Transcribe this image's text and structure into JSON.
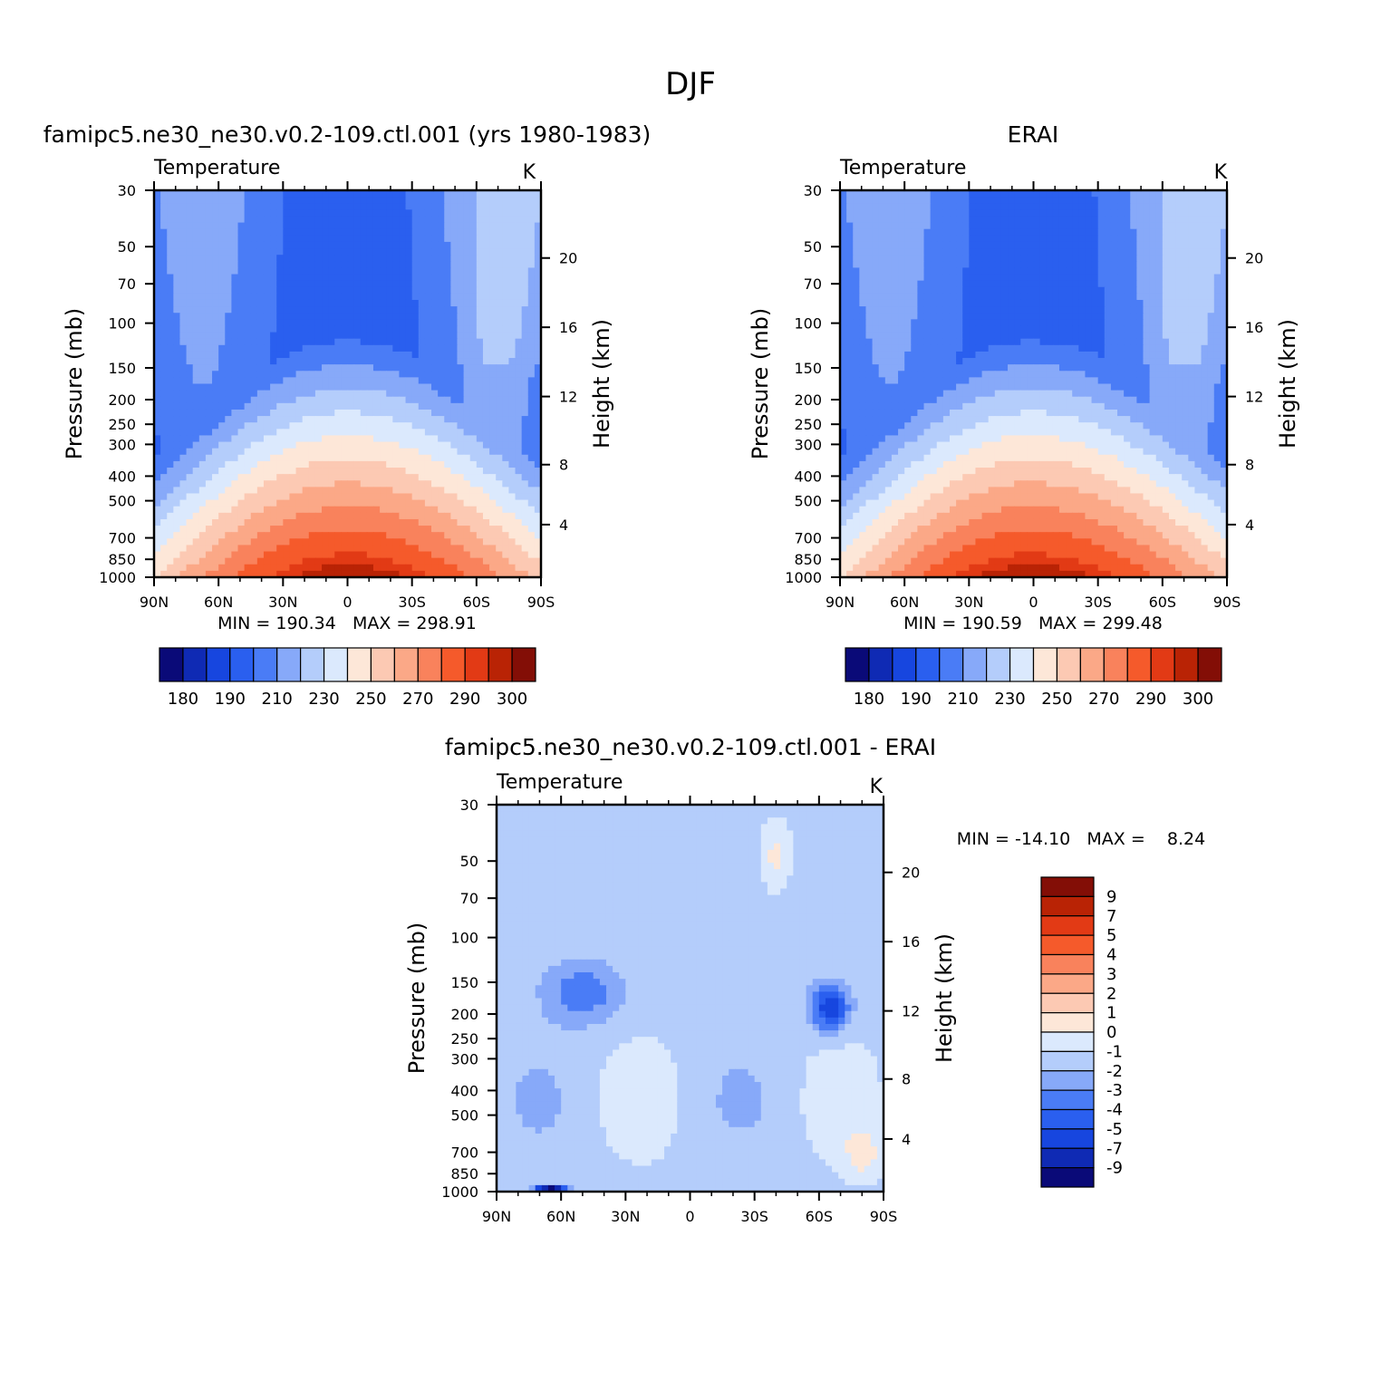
{
  "figure": {
    "title": "DJF"
  },
  "palettes": {
    "abs": [
      "#0a0a78",
      "#0f2ab4",
      "#1746df",
      "#2a5fef",
      "#4a7cf6",
      "#87a9f9",
      "#b4cdfb",
      "#dbe9fd",
      "#fde7d8",
      "#fcc9b3",
      "#fba887",
      "#f9825c",
      "#f55a2b",
      "#e23a15",
      "#b92305",
      "#830e06"
    ],
    "diff": [
      "#0a0a78",
      "#0f2ab4",
      "#1746df",
      "#2a5fef",
      "#4a7cf6",
      "#87a9f9",
      "#b4cdfb",
      "#dbe9fd",
      "#fde7d8",
      "#fcc9b3",
      "#fba887",
      "#f9825c",
      "#f55a2b",
      "#e23a15",
      "#b92305",
      "#830e06"
    ]
  },
  "chart_data": [
    {
      "type": "heatmap",
      "title": "famipc5.ne30_ne30.v0.2-109.ctl.001 (yrs 1980-1983)",
      "variable_label": "Temperature",
      "units": "K",
      "ylabel": "Pressure (mb)",
      "ylabel_right": "Height (km)",
      "x_ticks": [
        "90N",
        "60N",
        "30N",
        "0",
        "30S",
        "60S",
        "90S"
      ],
      "y_ticks": [
        "30",
        "50",
        "70",
        "100",
        "150",
        "200",
        "250",
        "300",
        "400",
        "500",
        "700",
        "850",
        "1000"
      ],
      "height_ticks": [
        "20",
        "16",
        "12",
        "8",
        "4"
      ],
      "stats_label": "MIN = 190.34   MAX = 298.91",
      "min": 190.34,
      "max": 298.91,
      "colorbar_labels": [
        "180",
        "190",
        "210",
        "230",
        "250",
        "270",
        "290",
        "300"
      ],
      "levels": [
        180,
        185,
        190,
        200,
        210,
        220,
        230,
        240,
        250,
        260,
        270,
        280,
        290,
        295,
        300
      ]
    },
    {
      "type": "heatmap",
      "title": "ERAI",
      "variable_label": "Temperature",
      "units": "K",
      "ylabel": "Pressure (mb)",
      "ylabel_right": "Height (km)",
      "x_ticks": [
        "90N",
        "60N",
        "30N",
        "0",
        "30S",
        "60S",
        "90S"
      ],
      "y_ticks": [
        "30",
        "50",
        "70",
        "100",
        "150",
        "200",
        "250",
        "300",
        "400",
        "500",
        "700",
        "850",
        "1000"
      ],
      "height_ticks": [
        "20",
        "16",
        "12",
        "8",
        "4"
      ],
      "stats_label": "MIN = 190.59   MAX = 299.48",
      "min": 190.59,
      "max": 299.48,
      "colorbar_labels": [
        "180",
        "190",
        "210",
        "230",
        "250",
        "270",
        "290",
        "300"
      ],
      "levels": [
        180,
        185,
        190,
        200,
        210,
        220,
        230,
        240,
        250,
        260,
        270,
        280,
        290,
        295,
        300
      ]
    },
    {
      "type": "heatmap",
      "title": "famipc5.ne30_ne30.v0.2-109.ctl.001 - ERAI",
      "variable_label": "Temperature",
      "units": "K",
      "ylabel": "Pressure (mb)",
      "ylabel_right": "Height (km)",
      "x_ticks": [
        "90N",
        "60N",
        "30N",
        "0",
        "30S",
        "60S",
        "90S"
      ],
      "y_ticks": [
        "30",
        "50",
        "70",
        "100",
        "150",
        "200",
        "250",
        "300",
        "400",
        "500",
        "700",
        "850",
        "1000"
      ],
      "height_ticks": [
        "20",
        "16",
        "12",
        "8",
        "4"
      ],
      "stats_label": "MIN = -14.10   MAX =    8.24",
      "min": -14.1,
      "max": 8.24,
      "colorbar_labels": [
        "9",
        "7",
        "5",
        "4",
        "3",
        "2",
        "1",
        "0",
        "-1",
        "-2",
        "-3",
        "-4",
        "-5",
        "-7",
        "-9"
      ],
      "levels": [
        -9,
        -7,
        -5,
        -4,
        -3,
        -2,
        -1,
        0,
        1,
        2,
        3,
        4,
        5,
        7,
        9
      ]
    }
  ]
}
